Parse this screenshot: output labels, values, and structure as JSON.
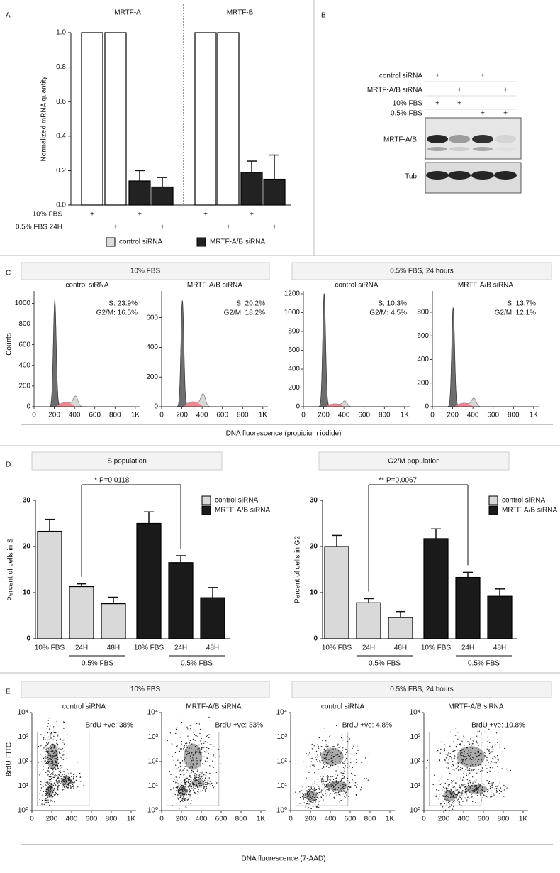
{
  "panel_labels": [
    "A",
    "B",
    "C",
    "D",
    "E"
  ],
  "blot": {
    "rows": [
      {
        "name": "control siRNA",
        "lanes": [
          "+",
          null,
          "+",
          null
        ]
      },
      {
        "name": "MRTF-A/B siRNA",
        "lanes": [
          null,
          "+",
          null,
          "+"
        ]
      },
      {
        "name": "10% FBS",
        "lanes": [
          "+",
          "+",
          null,
          null
        ]
      },
      {
        "name": "0.5% FBS",
        "lanes": [
          null,
          null,
          "+",
          "+"
        ]
      }
    ],
    "bands": [
      "MRTF-A/B",
      "Tub"
    ]
  },
  "panel_c": {
    "headers": [
      "10% FBS",
      "0.5% FBS, 24 hours"
    ],
    "ylabel": "Counts",
    "xlabel": "DNA fluorescence (propidium iodide)"
  },
  "panel_e": {
    "headers": [
      "10% FBS",
      "0.5% FBS, 24 hours"
    ],
    "ylabel": "BrdU-FITC",
    "xlabel": "DNA fluorescence (7-AAD)"
  },
  "chart_data": [
    {
      "type": "bar",
      "ylabel": "Normalized mRNA quantity",
      "groups": [
        "MRTF-A",
        "MRTF-B"
      ],
      "series": [
        {
          "name": "control siRNA",
          "color": "#ffffff",
          "values": [
            1,
            1,
            null,
            null,
            1,
            1,
            null,
            null
          ]
        },
        {
          "name": "MRTF-A/B siRNA",
          "color": "#222222",
          "values": [
            null,
            null,
            0.14,
            0.105,
            null,
            null,
            0.19,
            0.15
          ],
          "errors": [
            null,
            null,
            0.06,
            0.055,
            null,
            null,
            0.065,
            0.14
          ]
        }
      ],
      "conditions": [
        {
          "name": "10% FBS",
          "marks": [
            "+",
            null,
            "+",
            null,
            "+",
            null,
            "+",
            null
          ]
        },
        {
          "name": "0.5% FBS 24H",
          "marks": [
            null,
            "+",
            null,
            "+",
            null,
            "+",
            null,
            "+"
          ]
        }
      ],
      "ylim": [
        0,
        1
      ],
      "yticks": [
        {
          "value": 0,
          "label": "0.0"
        },
        0.2,
        0.4,
        0.6,
        0.8,
        {
          "value": 1,
          "label": "1.0"
        }
      ]
    },
    {
      "type": "bar",
      "title": "S population",
      "ylabel": "Percent of cells in S",
      "categories": [
        "10% FBS",
        "24H",
        "48H",
        "10% FBS",
        "24H",
        "48H"
      ],
      "subgroups": [
        "0.5% FBS",
        "0.5% FBS"
      ],
      "series": [
        {
          "name": "control siRNA",
          "color": "#d9d9d9",
          "values": [
            23.3,
            11.3,
            7.6,
            null,
            null,
            null
          ],
          "errors": [
            2.6,
            0.6,
            1.4,
            null,
            null,
            null
          ]
        },
        {
          "name": "MRTF-A/B siRNA",
          "color": "#1a1a1a",
          "values": [
            null,
            null,
            null,
            25,
            16.5,
            8.9
          ],
          "errors": [
            null,
            null,
            null,
            2.5,
            1.5,
            2.2
          ]
        }
      ],
      "significance": {
        "stars": "*",
        "label": "P=0.0118"
      },
      "ylim": [
        0,
        30
      ],
      "yticks": [
        0,
        10,
        20,
        30
      ]
    },
    {
      "type": "bar",
      "title": "G2/M population",
      "ylabel": "Percent of cells in G2",
      "categories": [
        "10% FBS",
        "24H",
        "48H",
        "10% FBS",
        "24H",
        "48H"
      ],
      "subgroups": [
        "0.5% FBS",
        "0.5% FBS"
      ],
      "series": [
        {
          "name": "control siRNA",
          "color": "#d9d9d9",
          "values": [
            20,
            7.8,
            4.6,
            null,
            null,
            null
          ],
          "errors": [
            2.4,
            0.9,
            1.3,
            null,
            null,
            null
          ]
        },
        {
          "name": "MRTF-A/B siRNA",
          "color": "#1a1a1a",
          "values": [
            null,
            null,
            null,
            21.7,
            13.3,
            9.2
          ],
          "errors": [
            null,
            null,
            null,
            2.1,
            1.1,
            1.6
          ]
        }
      ],
      "significance": {
        "stars": "**",
        "label": "P=0.0067"
      },
      "ylim": [
        0,
        30
      ],
      "yticks": [
        0,
        10,
        20,
        30
      ]
    },
    {
      "type": "flow-histogram",
      "subtitle": "control siRNA",
      "annotations": [
        "S: 23.9%",
        "G2/M: 16.5%"
      ],
      "xlim": [
        0,
        1050
      ],
      "xticks": [
        0,
        200,
        400,
        600,
        800,
        {
          "value": 1000,
          "label": "1K"
        }
      ],
      "ylim": [
        0,
        1120
      ],
      "yticks": [
        0,
        200,
        400,
        600,
        800,
        1000
      ]
    },
    {
      "type": "flow-histogram",
      "subtitle": "MRTF-A/B siRNA",
      "annotations": [
        "S: 20.2%",
        "G2/M: 18.2%"
      ],
      "xlim": [
        0,
        1050
      ],
      "xticks": [
        0,
        200,
        400,
        600,
        800,
        {
          "value": 1000,
          "label": "1K"
        }
      ],
      "ylim": [
        0,
        780
      ],
      "yticks": [
        0,
        200,
        400,
        600
      ]
    },
    {
      "type": "flow-histogram",
      "subtitle": "control siRNA",
      "annotations": [
        "S: 10.3%",
        "G2/M: 4.5%"
      ],
      "xlim": [
        0,
        1050
      ],
      "xticks": [
        0,
        200,
        400,
        600,
        800,
        {
          "value": 1000,
          "label": "1K"
        }
      ],
      "ylim": [
        0,
        1230
      ],
      "yticks": [
        0,
        200,
        400,
        600,
        800,
        1000,
        1200
      ]
    },
    {
      "type": "flow-histogram",
      "subtitle": "MRTF-A/B siRNA",
      "annotations": [
        "S: 13.7%",
        "G2/M: 12.1%"
      ],
      "xlim": [
        0,
        1050
      ],
      "xticks": [
        0,
        200,
        400,
        600,
        800,
        {
          "value": 1000,
          "label": "1K"
        }
      ],
      "ylim": [
        0,
        980
      ],
      "yticks": [
        0,
        200,
        400,
        600,
        800
      ]
    },
    {
      "type": "flow-density",
      "subtitle": "control siRNA",
      "annotations": [
        "BrdU +ve: 38%"
      ],
      "ylog": true,
      "xlim": [
        0,
        1050
      ],
      "xticks": [
        0,
        200,
        400,
        600,
        800,
        {
          "value": 1000,
          "label": "1K"
        }
      ],
      "ylim": [
        1,
        10000
      ],
      "yticks": [
        {
          "value": 1,
          "label": "10⁰"
        },
        {
          "value": 10,
          "label": "10¹"
        },
        {
          "value": 100,
          "label": "10²"
        },
        {
          "value": 1000,
          "label": "10³"
        },
        {
          "value": 10000,
          "label": "10⁴"
        }
      ]
    },
    {
      "type": "flow-density",
      "subtitle": "MRTF-A/B siRNA",
      "annotations": [
        "BrdU +ve: 33%"
      ],
      "ylog": true,
      "xlim": [
        0,
        1050
      ],
      "xticks": [
        0,
        200,
        400,
        600,
        800,
        {
          "value": 1000,
          "label": "1K"
        }
      ],
      "ylim": [
        1,
        10000
      ],
      "yticks": [
        {
          "value": 1,
          "label": "10⁰"
        },
        {
          "value": 10,
          "label": "10¹"
        },
        {
          "value": 100,
          "label": "10²"
        },
        {
          "value": 1000,
          "label": "10³"
        },
        {
          "value": 10000,
          "label": "10⁴"
        }
      ]
    },
    {
      "type": "flow-density",
      "subtitle": "control siRNA",
      "annotations": [
        "BrdU +ve: 4.8%"
      ],
      "ylog": true,
      "xlim": [
        0,
        1050
      ],
      "xticks": [
        0,
        200,
        400,
        600,
        800,
        {
          "value": 1000,
          "label": "1K"
        }
      ],
      "ylim": [
        1,
        10000
      ],
      "yticks": [
        {
          "value": 1,
          "label": "10⁰"
        },
        {
          "value": 10,
          "label": "10¹"
        },
        {
          "value": 100,
          "label": "10²"
        },
        {
          "value": 1000,
          "label": "10³"
        },
        {
          "value": 10000,
          "label": "10⁴"
        }
      ]
    },
    {
      "type": "flow-density",
      "subtitle": "MRTF-A/B siRNA",
      "annotations": [
        "BrdU +ve: 10.8%"
      ],
      "ylog": true,
      "xlim": [
        0,
        1050
      ],
      "xticks": [
        0,
        200,
        400,
        600,
        800,
        {
          "value": 1000,
          "label": "1K"
        }
      ],
      "ylim": [
        1,
        10000
      ],
      "yticks": [
        {
          "value": 1,
          "label": "10⁰"
        },
        {
          "value": 10,
          "label": "10¹"
        },
        {
          "value": 100,
          "label": "10²"
        },
        {
          "value": 1000,
          "label": "10³"
        },
        {
          "value": 10000,
          "label": "10⁴"
        }
      ]
    }
  ]
}
